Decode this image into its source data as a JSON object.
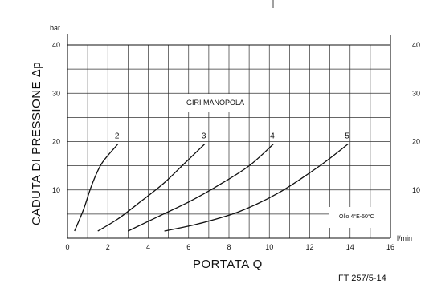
{
  "chart_data": {
    "type": "line",
    "title": "",
    "xlabel": "PORTATA Q",
    "ylabel": "CADUTA DI PRESSIONE Δp",
    "x_unit": "l/min",
    "y_unit": "bar",
    "xlim": [
      0,
      16
    ],
    "ylim": [
      0,
      40
    ],
    "x_ticks": [
      "0",
      "2",
      "4",
      "6",
      "8",
      "10",
      "12",
      "14",
      "16"
    ],
    "y_ticks": [
      "10",
      "20",
      "30",
      "40"
    ],
    "right_ticks": [
      "10",
      "20",
      "30",
      "40"
    ],
    "grid": true,
    "series_group_label": "GIRI MANOPOLA",
    "series": [
      {
        "name": "2",
        "x": [
          0.35,
          0.8,
          1.2,
          1.7,
          2.5
        ],
        "y": [
          1.5,
          6,
          11,
          15.5,
          19.5
        ]
      },
      {
        "name": "3",
        "x": [
          1.5,
          2.5,
          3.6,
          4.8,
          5.8,
          6.8
        ],
        "y": [
          1.5,
          4,
          7.5,
          11.5,
          15.5,
          19.5
        ]
      },
      {
        "name": "4",
        "x": [
          3,
          4.5,
          6,
          7.5,
          9,
          10.2
        ],
        "y": [
          1.5,
          4.5,
          7.5,
          11,
          15,
          19.5
        ]
      },
      {
        "name": "5",
        "x": [
          4.8,
          6.5,
          8.5,
          10.5,
          12.5,
          13.9
        ],
        "y": [
          1.5,
          3,
          5.5,
          9.5,
          15,
          19.5
        ]
      }
    ],
    "note": "Olio 4°E-50°C"
  },
  "footer": {
    "reference": "FT 257/5-14"
  }
}
